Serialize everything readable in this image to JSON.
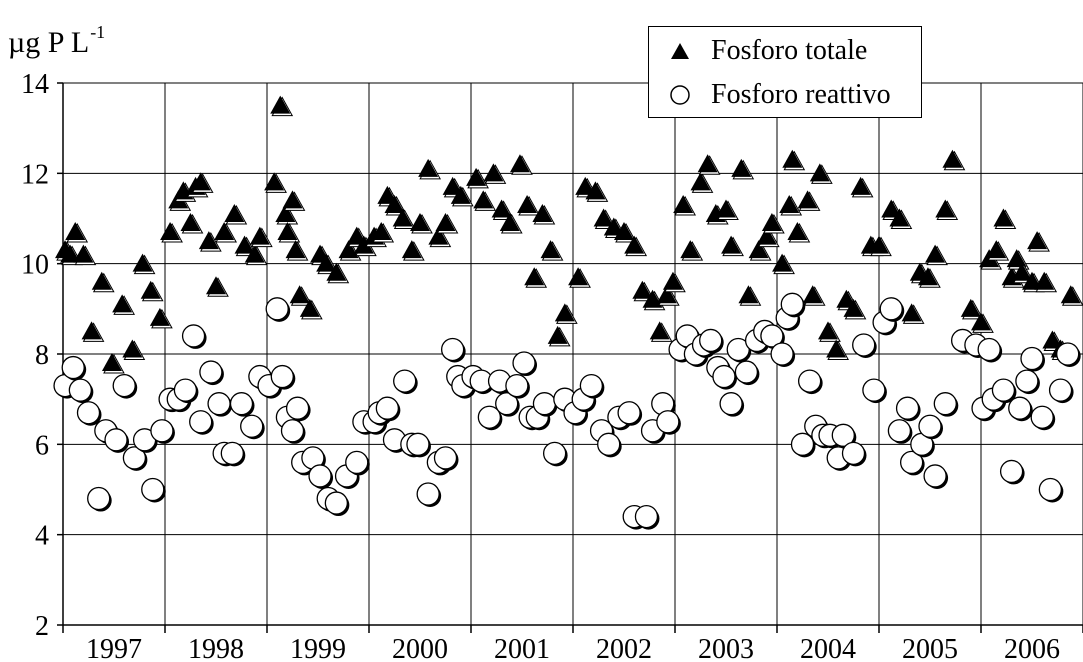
{
  "chart_data": {
    "type": "scatter",
    "ylabel": "µg P L",
    "ylabel_exponent": "-1",
    "ylim": [
      2,
      14
    ],
    "yticks": [
      2,
      4,
      6,
      8,
      10,
      12,
      14
    ],
    "xlim": [
      1997,
      2007
    ],
    "categories": [
      "1997",
      "1998",
      "1999",
      "2000",
      "2001",
      "2002",
      "2003",
      "2004",
      "2005",
      "2006"
    ],
    "grid": true,
    "legend": "top-right",
    "series": [
      {
        "name": "Fosforo totale",
        "marker": "triangle",
        "color": "#000000",
        "points": [
          [
            1997.02,
            10.3
          ],
          [
            1997.07,
            10.2
          ],
          [
            1997.12,
            10.7
          ],
          [
            1997.2,
            10.2
          ],
          [
            1997.28,
            8.5
          ],
          [
            1997.38,
            9.6
          ],
          [
            1997.48,
            7.8
          ],
          [
            1997.58,
            9.1
          ],
          [
            1997.68,
            8.1
          ],
          [
            1997.78,
            10.0
          ],
          [
            1997.86,
            9.4
          ],
          [
            1997.95,
            8.8
          ],
          [
            1998.05,
            10.7
          ],
          [
            1998.13,
            11.4
          ],
          [
            1998.18,
            11.6
          ],
          [
            1998.25,
            10.9
          ],
          [
            1998.3,
            11.7
          ],
          [
            1998.35,
            11.8
          ],
          [
            1998.43,
            10.5
          ],
          [
            1998.5,
            9.5
          ],
          [
            1998.58,
            10.7
          ],
          [
            1998.68,
            11.1
          ],
          [
            1998.78,
            10.4
          ],
          [
            1998.88,
            10.2
          ],
          [
            1998.93,
            10.6
          ],
          [
            1999.07,
            11.8
          ],
          [
            1999.13,
            13.5
          ],
          [
            1999.18,
            11.1
          ],
          [
            1999.2,
            10.7
          ],
          [
            1999.25,
            11.4
          ],
          [
            1999.28,
            10.3
          ],
          [
            1999.32,
            9.3
          ],
          [
            1999.42,
            9.0
          ],
          [
            1999.52,
            10.2
          ],
          [
            1999.58,
            10.0
          ],
          [
            1999.68,
            9.8
          ],
          [
            1999.8,
            10.3
          ],
          [
            1999.88,
            10.6
          ],
          [
            1999.95,
            10.4
          ],
          [
            2000.05,
            10.6
          ],
          [
            2000.12,
            10.7
          ],
          [
            2000.18,
            11.5
          ],
          [
            2000.25,
            11.3
          ],
          [
            2000.33,
            11.0
          ],
          [
            2000.42,
            10.3
          ],
          [
            2000.5,
            10.9
          ],
          [
            2000.58,
            12.1
          ],
          [
            2000.68,
            10.6
          ],
          [
            2000.75,
            10.9
          ],
          [
            2000.82,
            11.7
          ],
          [
            2000.9,
            11.5
          ],
          [
            2001.05,
            11.9
          ],
          [
            2001.12,
            11.4
          ],
          [
            2001.22,
            12.0
          ],
          [
            2001.3,
            11.2
          ],
          [
            2001.38,
            10.9
          ],
          [
            2001.48,
            12.2
          ],
          [
            2001.55,
            11.3
          ],
          [
            2001.62,
            9.7
          ],
          [
            2001.7,
            11.1
          ],
          [
            2001.78,
            10.3
          ],
          [
            2001.85,
            8.4
          ],
          [
            2001.92,
            8.9
          ],
          [
            2002.05,
            9.7
          ],
          [
            2002.12,
            11.7
          ],
          [
            2002.22,
            11.6
          ],
          [
            2002.3,
            11.0
          ],
          [
            2002.4,
            10.8
          ],
          [
            2002.5,
            10.7
          ],
          [
            2002.6,
            10.4
          ],
          [
            2002.68,
            9.4
          ],
          [
            2002.78,
            9.2
          ],
          [
            2002.85,
            8.5
          ],
          [
            2002.92,
            9.3
          ],
          [
            2002.98,
            9.6
          ],
          [
            2003.08,
            11.3
          ],
          [
            2003.15,
            10.3
          ],
          [
            2003.25,
            11.8
          ],
          [
            2003.32,
            12.2
          ],
          [
            2003.4,
            11.1
          ],
          [
            2003.5,
            11.2
          ],
          [
            2003.55,
            10.4
          ],
          [
            2003.65,
            12.1
          ],
          [
            2003.72,
            9.3
          ],
          [
            2003.82,
            10.3
          ],
          [
            2003.9,
            10.6
          ],
          [
            2003.95,
            10.9
          ],
          [
            2004.05,
            10.0
          ],
          [
            2004.12,
            11.3
          ],
          [
            2004.15,
            12.3
          ],
          [
            2004.2,
            10.7
          ],
          [
            2004.3,
            11.4
          ],
          [
            2004.35,
            9.3
          ],
          [
            2004.42,
            12.0
          ],
          [
            2004.5,
            8.5
          ],
          [
            2004.58,
            8.1
          ],
          [
            2004.68,
            9.2
          ],
          [
            2004.75,
            9.0
          ],
          [
            2004.82,
            11.7
          ],
          [
            2004.92,
            10.4
          ],
          [
            2005.0,
            10.4
          ],
          [
            2005.12,
            11.2
          ],
          [
            2005.2,
            11.0
          ],
          [
            2005.32,
            8.9
          ],
          [
            2005.4,
            9.8
          ],
          [
            2005.48,
            9.7
          ],
          [
            2005.55,
            10.2
          ],
          [
            2005.65,
            11.2
          ],
          [
            2005.72,
            12.3
          ],
          [
            2005.9,
            9.0
          ],
          [
            2006.0,
            8.7
          ],
          [
            2006.08,
            10.1
          ],
          [
            2006.15,
            10.3
          ],
          [
            2006.22,
            11.0
          ],
          [
            2006.3,
            9.7
          ],
          [
            2006.35,
            10.1
          ],
          [
            2006.4,
            9.8
          ],
          [
            2006.5,
            9.6
          ],
          [
            2006.55,
            10.5
          ],
          [
            2006.62,
            9.6
          ],
          [
            2006.7,
            8.3
          ],
          [
            2006.78,
            8.1
          ],
          [
            2006.88,
            9.3
          ]
        ]
      },
      {
        "name": "Fosforo reattivo",
        "marker": "circle",
        "color": "#ffffff",
        "points": [
          [
            1997.02,
            7.3
          ],
          [
            1997.1,
            7.7
          ],
          [
            1997.17,
            7.2
          ],
          [
            1997.25,
            6.7
          ],
          [
            1997.35,
            4.8
          ],
          [
            1997.42,
            6.3
          ],
          [
            1997.52,
            6.1
          ],
          [
            1997.6,
            7.3
          ],
          [
            1997.7,
            5.7
          ],
          [
            1997.8,
            6.1
          ],
          [
            1997.88,
            5.0
          ],
          [
            1997.97,
            6.3
          ],
          [
            1998.05,
            7.0
          ],
          [
            1998.13,
            7.0
          ],
          [
            1998.2,
            7.2
          ],
          [
            1998.28,
            8.4
          ],
          [
            1998.35,
            6.5
          ],
          [
            1998.45,
            7.6
          ],
          [
            1998.53,
            6.9
          ],
          [
            1998.58,
            5.8
          ],
          [
            1998.66,
            5.8
          ],
          [
            1998.75,
            6.9
          ],
          [
            1998.85,
            6.4
          ],
          [
            1998.93,
            7.5
          ],
          [
            1999.02,
            7.3
          ],
          [
            1999.1,
            9.0
          ],
          [
            1999.15,
            7.5
          ],
          [
            1999.2,
            6.6
          ],
          [
            1999.25,
            6.3
          ],
          [
            1999.3,
            6.8
          ],
          [
            1999.35,
            5.6
          ],
          [
            1999.45,
            5.7
          ],
          [
            1999.52,
            5.3
          ],
          [
            1999.6,
            4.8
          ],
          [
            1999.68,
            4.7
          ],
          [
            1999.78,
            5.3
          ],
          [
            1999.88,
            5.6
          ],
          [
            1999.95,
            6.5
          ],
          [
            2000.05,
            6.5
          ],
          [
            2000.1,
            6.7
          ],
          [
            2000.18,
            6.8
          ],
          [
            2000.25,
            6.1
          ],
          [
            2000.35,
            7.4
          ],
          [
            2000.42,
            6.0
          ],
          [
            2000.48,
            6.0
          ],
          [
            2000.58,
            4.9
          ],
          [
            2000.68,
            5.6
          ],
          [
            2000.75,
            5.7
          ],
          [
            2000.82,
            8.1
          ],
          [
            2000.87,
            7.5
          ],
          [
            2000.92,
            7.3
          ],
          [
            2001.02,
            7.5
          ],
          [
            2001.1,
            7.4
          ],
          [
            2001.18,
            6.6
          ],
          [
            2001.28,
            7.4
          ],
          [
            2001.35,
            6.9
          ],
          [
            2001.45,
            7.3
          ],
          [
            2001.52,
            7.8
          ],
          [
            2001.58,
            6.6
          ],
          [
            2001.65,
            6.6
          ],
          [
            2001.72,
            6.9
          ],
          [
            2001.82,
            5.8
          ],
          [
            2001.92,
            7.0
          ],
          [
            2002.02,
            6.7
          ],
          [
            2002.1,
            7.0
          ],
          [
            2002.18,
            7.3
          ],
          [
            2002.28,
            6.3
          ],
          [
            2002.35,
            6.0
          ],
          [
            2002.45,
            6.6
          ],
          [
            2002.55,
            6.7
          ],
          [
            2002.6,
            4.4
          ],
          [
            2002.72,
            4.4
          ],
          [
            2002.78,
            6.3
          ],
          [
            2002.88,
            6.9
          ],
          [
            2002.93,
            6.5
          ],
          [
            2003.05,
            8.1
          ],
          [
            2003.12,
            8.4
          ],
          [
            2003.2,
            8.0
          ],
          [
            2003.28,
            8.2
          ],
          [
            2003.35,
            8.3
          ],
          [
            2003.42,
            7.7
          ],
          [
            2003.48,
            7.5
          ],
          [
            2003.55,
            6.9
          ],
          [
            2003.62,
            8.1
          ],
          [
            2003.7,
            7.6
          ],
          [
            2003.8,
            8.3
          ],
          [
            2003.88,
            8.5
          ],
          [
            2003.95,
            8.4
          ],
          [
            2004.05,
            8.0
          ],
          [
            2004.1,
            8.8
          ],
          [
            2004.15,
            9.1
          ],
          [
            2004.25,
            6.0
          ],
          [
            2004.32,
            7.4
          ],
          [
            2004.38,
            6.4
          ],
          [
            2004.45,
            6.2
          ],
          [
            2004.52,
            6.2
          ],
          [
            2004.6,
            5.7
          ],
          [
            2004.65,
            6.2
          ],
          [
            2004.75,
            5.8
          ],
          [
            2004.85,
            8.2
          ],
          [
            2004.95,
            7.2
          ],
          [
            2005.05,
            8.7
          ],
          [
            2005.12,
            9.0
          ],
          [
            2005.2,
            6.3
          ],
          [
            2005.28,
            6.8
          ],
          [
            2005.32,
            5.6
          ],
          [
            2005.42,
            6.0
          ],
          [
            2005.5,
            6.4
          ],
          [
            2005.55,
            5.3
          ],
          [
            2005.65,
            6.9
          ],
          [
            2005.82,
            8.3
          ],
          [
            2005.95,
            8.2
          ],
          [
            2006.02,
            6.8
          ],
          [
            2006.08,
            8.1
          ],
          [
            2006.12,
            7.0
          ],
          [
            2006.22,
            7.2
          ],
          [
            2006.3,
            5.4
          ],
          [
            2006.38,
            6.8
          ],
          [
            2006.45,
            7.4
          ],
          [
            2006.5,
            7.9
          ],
          [
            2006.6,
            6.6
          ],
          [
            2006.68,
            5.0
          ],
          [
            2006.78,
            7.2
          ],
          [
            2006.85,
            8.0
          ]
        ]
      }
    ]
  }
}
